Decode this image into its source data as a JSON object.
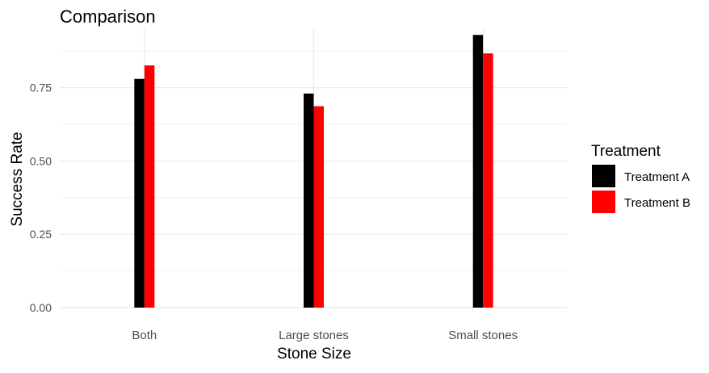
{
  "chart_data": {
    "type": "bar",
    "title": "Comparison",
    "xlabel": "Stone Size",
    "ylabel": "Success Rate",
    "categories": [
      "Both",
      "Large stones",
      "Small stones"
    ],
    "ylim": [
      0,
      0.95
    ],
    "yticks": [
      0.0,
      0.25,
      0.5,
      0.75
    ],
    "ytick_labels": [
      "0.00",
      "0.25",
      "0.50",
      "0.75"
    ],
    "grid": true,
    "legend": {
      "title": "Treatment",
      "placement": "right"
    },
    "series": [
      {
        "name": "Treatment A",
        "color": "#000000",
        "values": [
          0.78,
          0.73,
          0.93
        ]
      },
      {
        "name": "Treatment B",
        "color": "#ff0000",
        "values": [
          0.826,
          0.687,
          0.867
        ]
      }
    ]
  }
}
